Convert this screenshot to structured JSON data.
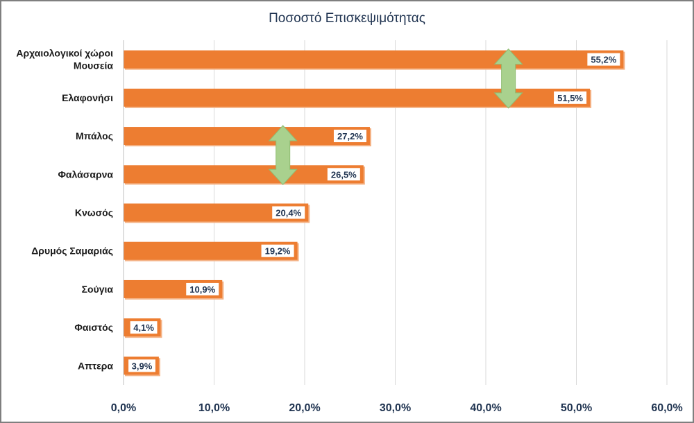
{
  "chart_data": {
    "type": "bar",
    "orientation": "horizontal",
    "title": "Ποσοστό Επισκεψιμότητας",
    "categories": [
      [
        "Αρχαιολογικοί χώροι",
        "Μουσεία"
      ],
      [
        "Ελαφονήσι"
      ],
      [
        "Μπάλος"
      ],
      [
        "Φαλάσαρνα"
      ],
      [
        "Κνωσός"
      ],
      [
        "Δρυμός Σαμαριάς"
      ],
      [
        "Σούγια"
      ],
      [
        "Φαιστός"
      ],
      [
        "Απτερα"
      ]
    ],
    "values": [
      55.2,
      51.5,
      27.2,
      26.5,
      20.4,
      19.2,
      10.9,
      4.1,
      3.9
    ],
    "data_labels": [
      "55,2%",
      "51,5%",
      "27,2%",
      "26,5%",
      "20,4%",
      "19,2%",
      "10,9%",
      "4,1%",
      "3,9%"
    ],
    "xticks": [
      0,
      10,
      20,
      30,
      40,
      50,
      60
    ],
    "xtick_labels": [
      "0,0%",
      "10,0%",
      "20,0%",
      "30,0%",
      "40,0%",
      "50,0%",
      "60,0%"
    ],
    "xlim": [
      0,
      60
    ],
    "grid": "vertical",
    "bar_color": "#ed7d31",
    "arrow_color": "#a9d18e",
    "annotations": [
      {
        "type": "double-arrow",
        "x_value": 42.5,
        "between": [
          0,
          1
        ]
      },
      {
        "type": "double-arrow",
        "x_value": 17.6,
        "between": [
          2,
          3
        ]
      }
    ]
  }
}
